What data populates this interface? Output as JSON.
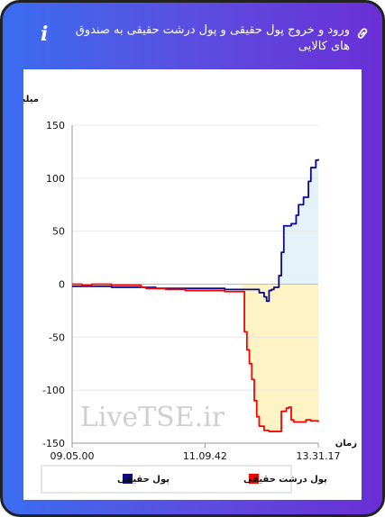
{
  "header": {
    "title": "ورود و خروج پول حقیقی و پول درشت حقیقی به صندوق های کالایی",
    "info_icon": "info-icon",
    "link_icon": "link-icon"
  },
  "watermark": "LiveTSE.ir",
  "chart_data": {
    "type": "line",
    "ylabel": "میلیارد تومان",
    "xlabel": "زمان",
    "ylim": [
      -150,
      150
    ],
    "yticks": [
      150,
      100,
      50,
      0,
      -50,
      -100,
      -150
    ],
    "xticks": [
      "09.05.00",
      "11.09.42",
      "13.31.17"
    ],
    "legend_position": "bottom",
    "series": [
      {
        "name": "پول حقیقی",
        "color": "#0a0a8a",
        "fill": "#e6f2fa",
        "values": [
          [
            0,
            -2
          ],
          [
            0.04,
            -2
          ],
          [
            0.08,
            -2
          ],
          [
            0.12,
            -2
          ],
          [
            0.16,
            -3
          ],
          [
            0.2,
            -3
          ],
          [
            0.24,
            -3
          ],
          [
            0.27,
            -3
          ],
          [
            0.3,
            -3
          ],
          [
            0.34,
            -4
          ],
          [
            0.38,
            -4
          ],
          [
            0.42,
            -4
          ],
          [
            0.46,
            -4
          ],
          [
            0.5,
            -4
          ],
          [
            0.54,
            -4
          ],
          [
            0.58,
            -4
          ],
          [
            0.62,
            -5
          ],
          [
            0.66,
            -5
          ],
          [
            0.7,
            -5
          ],
          [
            0.74,
            -5
          ],
          [
            0.76,
            -8
          ],
          [
            0.78,
            -12
          ],
          [
            0.79,
            -16
          ],
          [
            0.8,
            -6
          ],
          [
            0.81,
            -5
          ],
          [
            0.82,
            -3
          ],
          [
            0.84,
            8
          ],
          [
            0.85,
            30
          ],
          [
            0.86,
            55
          ],
          [
            0.88,
            55
          ],
          [
            0.89,
            57
          ],
          [
            0.9,
            57
          ],
          [
            0.91,
            65
          ],
          [
            0.92,
            75
          ],
          [
            0.94,
            82
          ],
          [
            0.95,
            82
          ],
          [
            0.96,
            97
          ],
          [
            0.97,
            110
          ],
          [
            0.985,
            110
          ],
          [
            0.99,
            117
          ],
          [
            1.0,
            118
          ]
        ]
      },
      {
        "name": "پول درشت حقیقی",
        "color": "#ff0000",
        "fill": "#fdf3c4",
        "values": [
          [
            0,
            0
          ],
          [
            0.04,
            -1
          ],
          [
            0.08,
            0
          ],
          [
            0.12,
            0
          ],
          [
            0.16,
            -1
          ],
          [
            0.2,
            -1
          ],
          [
            0.24,
            -1
          ],
          [
            0.28,
            -3
          ],
          [
            0.3,
            -4
          ],
          [
            0.34,
            -4
          ],
          [
            0.38,
            -5
          ],
          [
            0.42,
            -5
          ],
          [
            0.46,
            -6
          ],
          [
            0.5,
            -6
          ],
          [
            0.54,
            -6
          ],
          [
            0.58,
            -6
          ],
          [
            0.62,
            -7
          ],
          [
            0.66,
            -7
          ],
          [
            0.69,
            -7
          ],
          [
            0.7,
            -45
          ],
          [
            0.71,
            -62
          ],
          [
            0.72,
            -75
          ],
          [
            0.73,
            -90
          ],
          [
            0.74,
            -110
          ],
          [
            0.75,
            -125
          ],
          [
            0.76,
            -134
          ],
          [
            0.78,
            -138
          ],
          [
            0.8,
            -139
          ],
          [
            0.83,
            -139
          ],
          [
            0.85,
            -120
          ],
          [
            0.87,
            -117
          ],
          [
            0.88,
            -116
          ],
          [
            0.89,
            -128
          ],
          [
            0.9,
            -130
          ],
          [
            0.93,
            -130
          ],
          [
            0.95,
            -128
          ],
          [
            0.97,
            -129
          ],
          [
            0.985,
            -129
          ],
          [
            1.0,
            -130
          ]
        ]
      }
    ]
  }
}
